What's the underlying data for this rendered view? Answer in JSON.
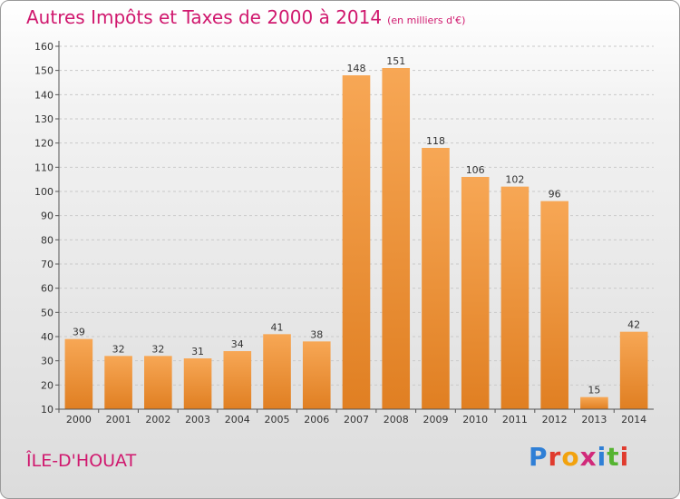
{
  "header": {
    "title": "Autres Impôts et Taxes de 2000 à 2014",
    "subtitle": "(en milliers d'€)"
  },
  "footer": {
    "town": "ÎLE-D'HOUAT",
    "logo": "Proxiti",
    "logo_colors": [
      "#2f7fd6",
      "#e03b2e",
      "#f2a20e",
      "#d12a7a",
      "#2f7fd6",
      "#55b431",
      "#e03b2e"
    ]
  },
  "colors": {
    "bar_light": "#f7a755",
    "bar_dark": "#e07f22",
    "title": "#d0186e"
  },
  "chart_data": {
    "type": "bar",
    "title": "Autres Impôts et Taxes de 2000 à 2014",
    "subtitle": "(en milliers d'€)",
    "categories": [
      "2000",
      "2001",
      "2002",
      "2003",
      "2004",
      "2005",
      "2006",
      "2007",
      "2008",
      "2009",
      "2010",
      "2011",
      "2012",
      "2013",
      "2014"
    ],
    "values": [
      39,
      32,
      32,
      31,
      34,
      41,
      38,
      148,
      151,
      118,
      106,
      102,
      96,
      15,
      42
    ],
    "ylim": [
      10,
      160
    ],
    "yticks": [
      10,
      20,
      30,
      40,
      50,
      60,
      70,
      80,
      90,
      100,
      110,
      120,
      130,
      140,
      150,
      160
    ],
    "grid": true,
    "legend": "none"
  }
}
